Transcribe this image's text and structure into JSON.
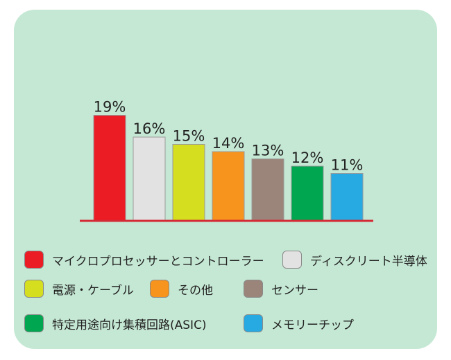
{
  "chart_data": {
    "type": "bar",
    "title": "",
    "xlabel": "",
    "ylabel": "",
    "ylim": [
      0,
      20
    ],
    "grid": false,
    "legend_position": "bottom",
    "categories": [
      "マイクロプロセッサーとコントローラー",
      "ディスクリート半導体",
      "電源・ケーブル",
      "その他",
      "センサー",
      "特定用途向け集積回路(ASIC)",
      "メモリーチップ"
    ],
    "values": [
      19,
      16,
      15,
      14,
      13,
      12,
      11
    ],
    "value_labels": [
      "19%",
      "16%",
      "15%",
      "14%",
      "13%",
      "12%",
      "11%"
    ],
    "colors": [
      "#ec1c24",
      "#e2e2e2",
      "#d5df1f",
      "#f7941d",
      "#9b857a",
      "#00a650",
      "#27aae1"
    ],
    "baseline_color": "#d42a35",
    "panel_color": "#c5e8d4"
  }
}
